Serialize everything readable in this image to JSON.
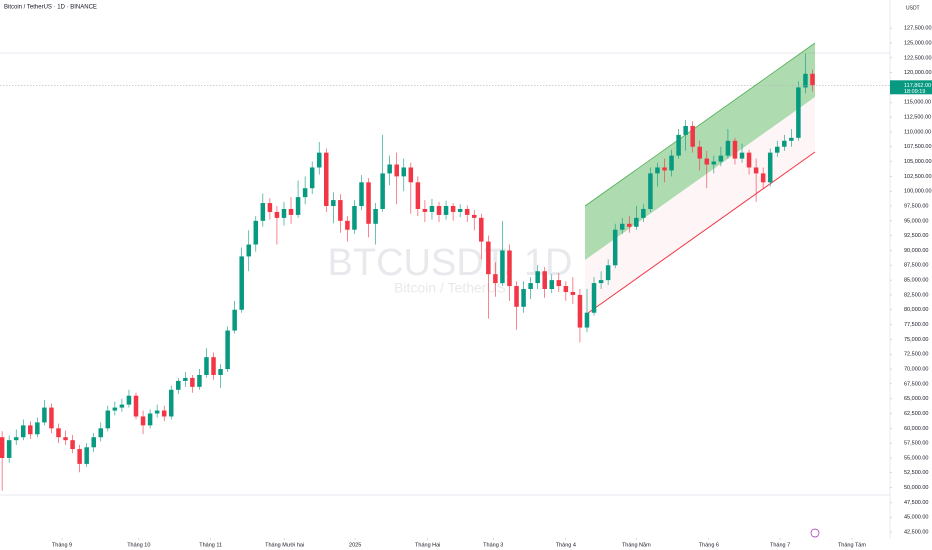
{
  "chart_data": {
    "type": "candlestick",
    "header": "Bitcoin / TetherUS · 1D · BINANCE",
    "watermark": "BTCUSDT, 1D",
    "watermark_subtitle": "Bitcoin / TetherUS",
    "axis_unit": "USDT",
    "up_color": "#089981",
    "down_color": "#f23645",
    "ohlc": [
      [
        58500,
        59500,
        49500,
        55000
      ],
      [
        55000,
        58800,
        54200,
        58000
      ],
      [
        58000,
        59800,
        57200,
        58500
      ],
      [
        58500,
        61500,
        58000,
        60500
      ],
      [
        60500,
        61200,
        58200,
        59000
      ],
      [
        59000,
        61800,
        58500,
        61000
      ],
      [
        61000,
        64800,
        60500,
        63500
      ],
      [
        63500,
        64200,
        59200,
        60000
      ],
      [
        60000,
        60800,
        57500,
        58500
      ],
      [
        58500,
        59600,
        57200,
        58000
      ],
      [
        58000,
        58900,
        55800,
        56500
      ],
      [
        56500,
        57200,
        52600,
        54000
      ],
      [
        54000,
        57500,
        53500,
        56800
      ],
      [
        56800,
        59200,
        56000,
        58500
      ],
      [
        58500,
        61000,
        57800,
        60000
      ],
      [
        60000,
        63800,
        59500,
        63000
      ],
      [
        63000,
        64500,
        62200,
        63500
      ],
      [
        63500,
        65000,
        62800,
        64000
      ],
      [
        64000,
        66500,
        63500,
        65500
      ],
      [
        65500,
        66000,
        61500,
        62000
      ],
      [
        62000,
        63000,
        59000,
        60500
      ],
      [
        60500,
        63200,
        60000,
        62500
      ],
      [
        62500,
        64000,
        61800,
        63000
      ],
      [
        63000,
        63800,
        61200,
        62000
      ],
      [
        62000,
        67200,
        61500,
        66500
      ],
      [
        66500,
        68500,
        65800,
        68000
      ],
      [
        68000,
        69500,
        67000,
        68500
      ],
      [
        68500,
        69000,
        66000,
        67000
      ],
      [
        67000,
        70000,
        66500,
        69000
      ],
      [
        69000,
        73500,
        68500,
        72000
      ],
      [
        72000,
        72800,
        68200,
        69000
      ],
      [
        69000,
        70800,
        66800,
        70000
      ],
      [
        70000,
        77200,
        69500,
        76500
      ],
      [
        76500,
        81500,
        76000,
        80000
      ],
      [
        80000,
        90500,
        79500,
        89000
      ],
      [
        89000,
        93400,
        86500,
        91000
      ],
      [
        91000,
        95800,
        89800,
        95000
      ],
      [
        95000,
        99600,
        94000,
        98000
      ],
      [
        98000,
        98800,
        95200,
        96500
      ],
      [
        96500,
        97500,
        91000,
        95500
      ],
      [
        95500,
        98200,
        94200,
        97000
      ],
      [
        97000,
        99000,
        94500,
        96000
      ],
      [
        96000,
        101800,
        95500,
        99000
      ],
      [
        99000,
        102500,
        97800,
        100500
      ],
      [
        100500,
        105000,
        99500,
        104000
      ],
      [
        104000,
        108300,
        102800,
        106500
      ],
      [
        106500,
        107200,
        96500,
        97500
      ],
      [
        97500,
        99800,
        94600,
        98500
      ],
      [
        98500,
        99500,
        93000,
        95000
      ],
      [
        95000,
        95800,
        91500,
        93500
      ],
      [
        93500,
        98500,
        92800,
        97500
      ],
      [
        97500,
        102700,
        96800,
        101500
      ],
      [
        101500,
        102200,
        92200,
        94500
      ],
      [
        94500,
        98000,
        91000,
        97000
      ],
      [
        97000,
        109500,
        96500,
        103000
      ],
      [
        103000,
        106000,
        101000,
        104500
      ],
      [
        104500,
        106500,
        97800,
        102500
      ],
      [
        102500,
        105500,
        100000,
        104000
      ],
      [
        104000,
        104800,
        96200,
        101500
      ],
      [
        101500,
        102500,
        95800,
        97000
      ],
      [
        97000,
        98500,
        94800,
        96500
      ],
      [
        96500,
        98700,
        95200,
        97500
      ],
      [
        97500,
        98200,
        94800,
        96000
      ],
      [
        96000,
        98400,
        95200,
        97500
      ],
      [
        97500,
        98000,
        95000,
        96500
      ],
      [
        96500,
        97800,
        95600,
        97000
      ],
      [
        97000,
        97600,
        94800,
        96000
      ],
      [
        96000,
        96800,
        93400,
        95500
      ],
      [
        95500,
        96200,
        88500,
        91500
      ],
      [
        91500,
        92500,
        78500,
        86000
      ],
      [
        86000,
        88000,
        82200,
        84500
      ],
      [
        84500,
        95000,
        84000,
        90000
      ],
      [
        90000,
        91000,
        81500,
        84000
      ],
      [
        84000,
        84800,
        76600,
        80500
      ],
      [
        80500,
        84800,
        79500,
        83500
      ],
      [
        83500,
        85500,
        81800,
        84500
      ],
      [
        84500,
        87500,
        83500,
        86500
      ],
      [
        86500,
        87200,
        82000,
        83500
      ],
      [
        83500,
        86000,
        82800,
        85000
      ],
      [
        85000,
        86200,
        83000,
        84000
      ],
      [
        84000,
        84800,
        81500,
        83000
      ],
      [
        83000,
        85500,
        81000,
        82500
      ],
      [
        82500,
        83500,
        74500,
        77000
      ],
      [
        77000,
        83500,
        76200,
        79500
      ],
      [
        79500,
        85500,
        79000,
        84500
      ],
      [
        84500,
        86500,
        83500,
        85000
      ],
      [
        85000,
        88500,
        84200,
        87500
      ],
      [
        87500,
        94500,
        87000,
        93500
      ],
      [
        93500,
        95500,
        92800,
        94500
      ],
      [
        94500,
        95800,
        93000,
        94000
      ],
      [
        94000,
        97500,
        93500,
        95500
      ],
      [
        95500,
        97800,
        94800,
        97000
      ],
      [
        97000,
        104000,
        96500,
        103000
      ],
      [
        103000,
        104800,
        100800,
        104000
      ],
      [
        104000,
        105500,
        101500,
        103500
      ],
      [
        103500,
        107000,
        102500,
        106000
      ],
      [
        106000,
        110500,
        105500,
        109500
      ],
      [
        109500,
        112000,
        106800,
        111000
      ],
      [
        111000,
        111800,
        106500,
        107500
      ],
      [
        107500,
        108500,
        103500,
        105500
      ],
      [
        105500,
        106800,
        100500,
        104500
      ],
      [
        104500,
        106000,
        103000,
        105000
      ],
      [
        105000,
        107500,
        104200,
        106000
      ],
      [
        106000,
        110500,
        105500,
        108500
      ],
      [
        108500,
        109000,
        104500,
        105500
      ],
      [
        105500,
        108000,
        104800,
        106500
      ],
      [
        106500,
        107000,
        102800,
        104000
      ],
      [
        104000,
        105500,
        98200,
        103000
      ],
      [
        103000,
        104000,
        100400,
        101500
      ],
      [
        101500,
        107200,
        100800,
        106500
      ],
      [
        106500,
        108500,
        105800,
        107500
      ],
      [
        107500,
        109500,
        106800,
        108500
      ],
      [
        108500,
        110500,
        107500,
        109000
      ],
      [
        109000,
        118500,
        108500,
        117500
      ],
      [
        117500,
        123200,
        116500,
        119800
      ],
      [
        119800,
        120500,
        116800,
        117862
      ]
    ],
    "xlim": [
      -0.3,
      126
    ],
    "xticks": [
      {
        "value": 8.5,
        "label": "Tháng 9"
      },
      {
        "value": 19.4,
        "label": "Tháng 10"
      },
      {
        "value": 29.6,
        "label": "Tháng 11"
      },
      {
        "value": 40.1,
        "label": "Tháng Mười hai"
      },
      {
        "value": 50.1,
        "label": "2025"
      },
      {
        "value": 60.4,
        "label": "Tháng Hai"
      },
      {
        "value": 69.7,
        "label": "Tháng 3"
      },
      {
        "value": 80.0,
        "label": "Tháng 4"
      },
      {
        "value": 90.0,
        "label": "Tháng Năm"
      },
      {
        "value": 100.3,
        "label": "Tháng 6"
      },
      {
        "value": 110.4,
        "label": "Tháng 7"
      },
      {
        "value": 120.6,
        "label": "Tháng Tám"
      }
    ],
    "ylim": [
      41500,
      132250
    ],
    "yticks": [
      {
        "value": 42500,
        "label": "42,500.00"
      },
      {
        "value": 45000,
        "label": "45,000.00"
      },
      {
        "value": 47500,
        "label": "47,500.00"
      },
      {
        "value": 50000,
        "label": "50,000.00"
      },
      {
        "value": 52500,
        "label": "52,500.00"
      },
      {
        "value": 55000,
        "label": "55,000.00"
      },
      {
        "value": 57500,
        "label": "57,500.00"
      },
      {
        "value": 60000,
        "label": "60,000.00"
      },
      {
        "value": 62500,
        "label": "62,500.00"
      },
      {
        "value": 65000,
        "label": "65,000.00"
      },
      {
        "value": 67500,
        "label": "67,500.00"
      },
      {
        "value": 70000,
        "label": "70,000.00"
      },
      {
        "value": 72500,
        "label": "72,500.00"
      },
      {
        "value": 75000,
        "label": "75,000.00"
      },
      {
        "value": 77500,
        "label": "77,500.00"
      },
      {
        "value": 80000,
        "label": "80,000.00"
      },
      {
        "value": 82500,
        "label": "82,500.00"
      },
      {
        "value": 85000,
        "label": "85,000.00"
      },
      {
        "value": 87500,
        "label": "87,500.00"
      },
      {
        "value": 90000,
        "label": "90,000.00"
      },
      {
        "value": 92500,
        "label": "92,500.00"
      },
      {
        "value": 95000,
        "label": "95,000.00"
      },
      {
        "value": 97500,
        "label": "97,500.00"
      },
      {
        "value": 100000,
        "label": "100,000.00"
      },
      {
        "value": 102500,
        "label": "102,500.00"
      },
      {
        "value": 105000,
        "label": "105,000.00"
      },
      {
        "value": 107500,
        "label": "107,500.00"
      },
      {
        "value": 110000,
        "label": "110,000.00"
      },
      {
        "value": 112500,
        "label": "112,500.00"
      },
      {
        "value": 115000,
        "label": "115,000.00"
      },
      {
        "value": 117500,
        "label": "117,500.00"
      },
      {
        "value": 120000,
        "label": "120,000.00"
      },
      {
        "value": 122500,
        "label": "122,500.00"
      },
      {
        "value": 125000,
        "label": "125,000.00"
      },
      {
        "value": 127500,
        "label": "127,500.00"
      }
    ],
    "last_price": {
      "value": 117862,
      "label": "117,862.00"
    },
    "countdown": "18:09:19"
  }
}
